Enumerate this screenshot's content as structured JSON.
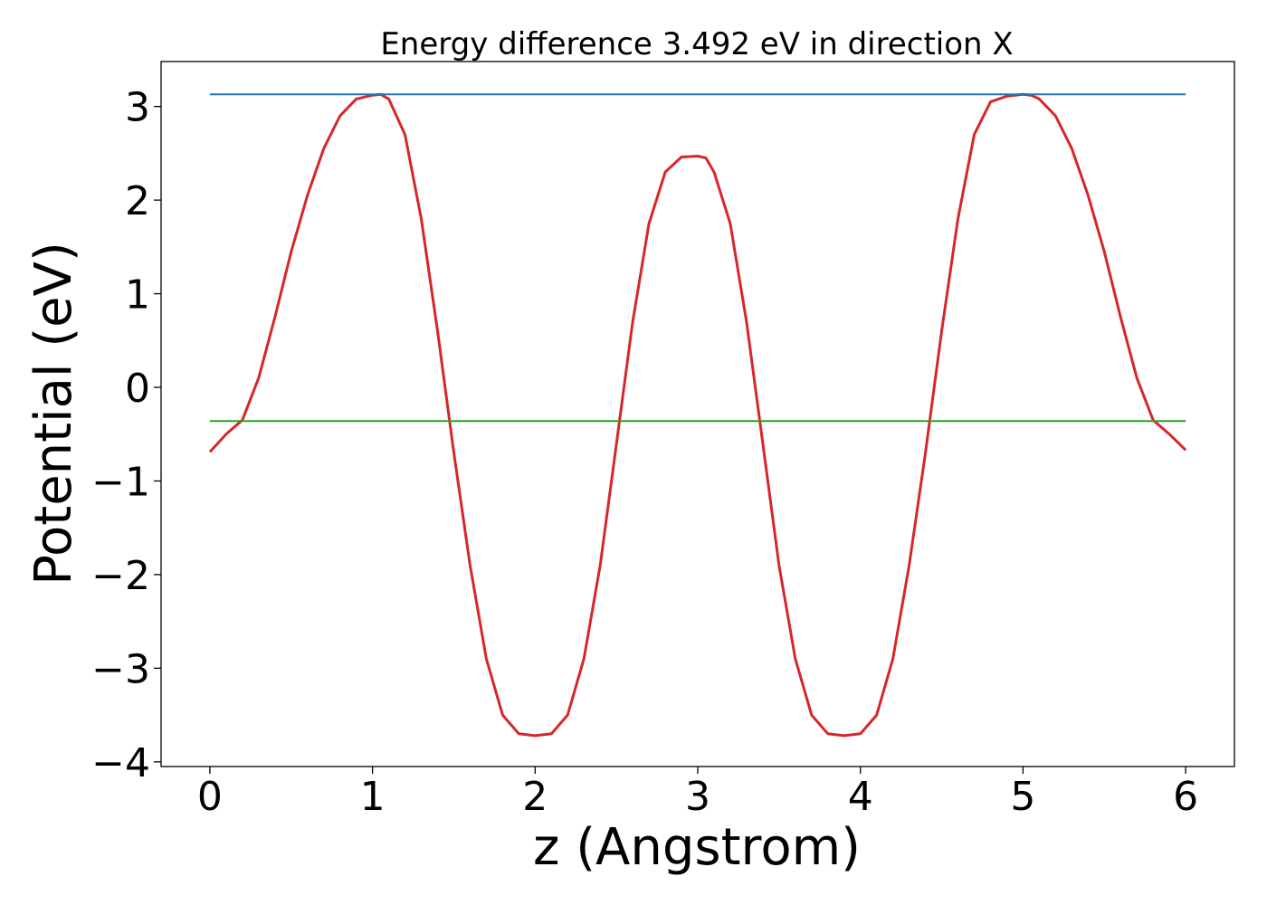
{
  "chart_data": {
    "type": "line",
    "title": "Energy difference 3.492 eV in direction X",
    "xlabel": "z (Angstrom)",
    "ylabel": "Potential (eV)",
    "xlim": [
      -0.3,
      6.3
    ],
    "ylim": [
      -4.05,
      3.48
    ],
    "xticks": [
      0,
      1,
      2,
      3,
      4,
      5,
      6
    ],
    "yticks": [
      -4,
      -3,
      -2,
      -1,
      0,
      1,
      2,
      3
    ],
    "xtick_labels": [
      "0",
      "1",
      "2",
      "3",
      "4",
      "5",
      "6"
    ],
    "ytick_labels": [
      "−4",
      "−3",
      "−2",
      "−1",
      "0",
      "1",
      "2",
      "3"
    ],
    "grid": false,
    "series": [
      {
        "color": "#d62728",
        "x": [
          0,
          0.1,
          0.2,
          0.3,
          0.4,
          0.5,
          0.6,
          0.7,
          0.8,
          0.9,
          1.0,
          1.05,
          1.1,
          1.2,
          1.3,
          1.4,
          1.5,
          1.6,
          1.7,
          1.8,
          1.9,
          2.0,
          2.1,
          2.2,
          2.3,
          2.4,
          2.5,
          2.6,
          2.7,
          2.8,
          2.9,
          3.0,
          3.05,
          3.1,
          3.2,
          3.3,
          3.4,
          3.5,
          3.6,
          3.7,
          3.8,
          3.9,
          4.0,
          4.1,
          4.2,
          4.3,
          4.4,
          4.5,
          4.6,
          4.7,
          4.8,
          4.9,
          5.0,
          5.05,
          5.1,
          5.2,
          5.3,
          5.4,
          5.5,
          5.6,
          5.7,
          5.8,
          5.9,
          6.0
        ],
        "y": [
          -0.69,
          -0.5,
          -0.35,
          0.1,
          0.75,
          1.45,
          2.05,
          2.55,
          2.9,
          3.08,
          3.12,
          3.13,
          3.08,
          2.7,
          1.8,
          0.6,
          -0.7,
          -1.9,
          -2.9,
          -3.5,
          -3.7,
          -3.72,
          -3.7,
          -3.5,
          -2.9,
          -1.9,
          -0.6,
          0.7,
          1.75,
          2.3,
          2.46,
          2.47,
          2.45,
          2.3,
          1.75,
          0.7,
          -0.6,
          -1.9,
          -2.9,
          -3.5,
          -3.7,
          -3.72,
          -3.7,
          -3.5,
          -2.9,
          -1.9,
          -0.7,
          0.6,
          1.8,
          2.7,
          3.05,
          3.11,
          3.13,
          3.12,
          3.08,
          2.9,
          2.55,
          2.05,
          1.45,
          0.75,
          0.1,
          -0.35,
          -0.5,
          -0.67
        ]
      },
      {
        "color": "#1f77b4",
        "x": [
          0,
          6
        ],
        "y": [
          3.13,
          3.13
        ]
      },
      {
        "color": "#2ca02c",
        "x": [
          0,
          6
        ],
        "y": [
          -0.36,
          -0.36
        ]
      }
    ]
  }
}
